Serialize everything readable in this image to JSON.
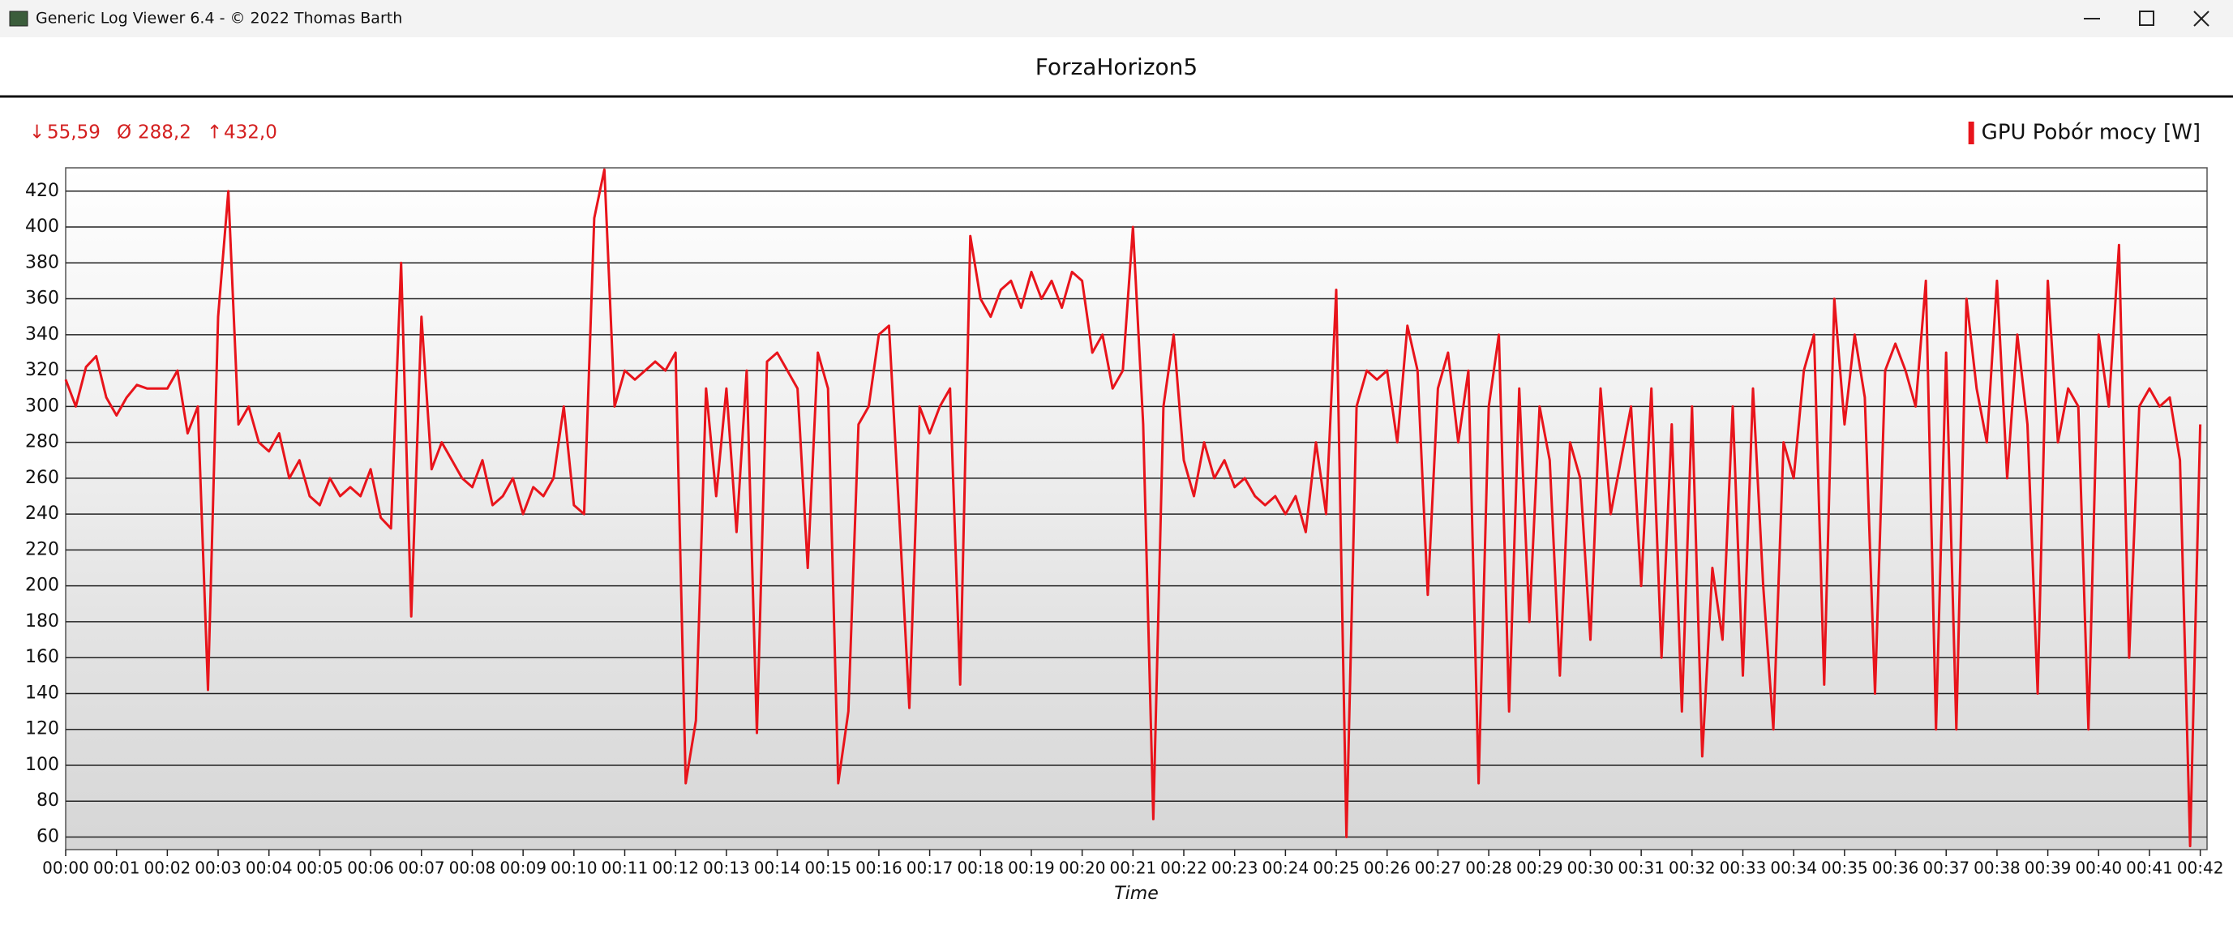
{
  "window": {
    "title": "Generic Log Viewer 6.4 - © 2022 Thomas Barth"
  },
  "chart_data": {
    "type": "line",
    "title": "ForzaHorizon5",
    "x_label": "Time",
    "stats": [
      {
        "symbol": "↓",
        "value": "55,59"
      },
      {
        "symbol": "Ø",
        "value": "288,2"
      },
      {
        "symbol": "↑",
        "value": "432,0"
      }
    ],
    "legend": "top-right",
    "grid": true,
    "xlim": [
      0,
      2528
    ],
    "ylim": [
      53,
      433
    ],
    "yticks": [
      60,
      80,
      100,
      120,
      140,
      160,
      180,
      200,
      220,
      240,
      260,
      280,
      300,
      320,
      340,
      360,
      380,
      400,
      420
    ],
    "xticks": [
      {
        "value": 0,
        "label": "00:00"
      },
      {
        "value": 60,
        "label": "00:01"
      },
      {
        "value": 120,
        "label": "00:02"
      },
      {
        "value": 180,
        "label": "00:03"
      },
      {
        "value": 240,
        "label": "00:04"
      },
      {
        "value": 300,
        "label": "00:05"
      },
      {
        "value": 360,
        "label": "00:06"
      },
      {
        "value": 420,
        "label": "00:07"
      },
      {
        "value": 480,
        "label": "00:08"
      },
      {
        "value": 540,
        "label": "00:09"
      },
      {
        "value": 600,
        "label": "00:10"
      },
      {
        "value": 660,
        "label": "00:11"
      },
      {
        "value": 720,
        "label": "00:12"
      },
      {
        "value": 780,
        "label": "00:13"
      },
      {
        "value": 840,
        "label": "00:14"
      },
      {
        "value": 900,
        "label": "00:15"
      },
      {
        "value": 960,
        "label": "00:16"
      },
      {
        "value": 1020,
        "label": "00:17"
      },
      {
        "value": 1080,
        "label": "00:18"
      },
      {
        "value": 1140,
        "label": "00:19"
      },
      {
        "value": 1200,
        "label": "00:20"
      },
      {
        "value": 1260,
        "label": "00:21"
      },
      {
        "value": 1320,
        "label": "00:22"
      },
      {
        "value": 1380,
        "label": "00:23"
      },
      {
        "value": 1440,
        "label": "00:24"
      },
      {
        "value": 1500,
        "label": "00:25"
      },
      {
        "value": 1560,
        "label": "00:26"
      },
      {
        "value": 1620,
        "label": "00:27"
      },
      {
        "value": 1680,
        "label": "00:28"
      },
      {
        "value": 1740,
        "label": "00:29"
      },
      {
        "value": 1800,
        "label": "00:30"
      },
      {
        "value": 1860,
        "label": "00:31"
      },
      {
        "value": 1920,
        "label": "00:32"
      },
      {
        "value": 1980,
        "label": "00:33"
      },
      {
        "value": 2040,
        "label": "00:34"
      },
      {
        "value": 2100,
        "label": "00:35"
      },
      {
        "value": 2160,
        "label": "00:36"
      },
      {
        "value": 2220,
        "label": "00:37"
      },
      {
        "value": 2280,
        "label": "00:38"
      },
      {
        "value": 2340,
        "label": "00:39"
      },
      {
        "value": 2400,
        "label": "00:40"
      },
      {
        "value": 2460,
        "label": "00:41"
      },
      {
        "value": 2520,
        "label": "00:42"
      }
    ],
    "x": [
      0,
      12,
      24,
      36,
      48,
      60,
      72,
      84,
      96,
      108,
      120,
      132,
      144,
      156,
      168,
      180,
      192,
      204,
      216,
      228,
      240,
      252,
      264,
      276,
      288,
      300,
      312,
      324,
      336,
      348,
      360,
      372,
      384,
      396,
      408,
      420,
      432,
      444,
      456,
      468,
      480,
      492,
      504,
      516,
      528,
      540,
      552,
      564,
      576,
      588,
      600,
      612,
      624,
      636,
      648,
      660,
      672,
      684,
      696,
      708,
      720,
      732,
      744,
      756,
      768,
      780,
      792,
      804,
      816,
      828,
      840,
      852,
      864,
      876,
      888,
      900,
      912,
      924,
      936,
      948,
      960,
      972,
      984,
      996,
      1008,
      1020,
      1032,
      1044,
      1056,
      1068,
      1080,
      1092,
      1104,
      1116,
      1128,
      1140,
      1152,
      1164,
      1176,
      1188,
      1200,
      1212,
      1224,
      1236,
      1248,
      1260,
      1272,
      1284,
      1296,
      1308,
      1320,
      1332,
      1344,
      1356,
      1368,
      1380,
      1392,
      1404,
      1416,
      1428,
      1440,
      1452,
      1464,
      1476,
      1488,
      1500,
      1512,
      1524,
      1536,
      1548,
      1560,
      1572,
      1584,
      1596,
      1608,
      1620,
      1632,
      1644,
      1656,
      1668,
      1680,
      1692,
      1704,
      1716,
      1728,
      1740,
      1752,
      1764,
      1776,
      1788,
      1800,
      1812,
      1824,
      1836,
      1848,
      1860,
      1872,
      1884,
      1896,
      1908,
      1920,
      1932,
      1944,
      1956,
      1968,
      1980,
      1992,
      2004,
      2016,
      2028,
      2040,
      2052,
      2064,
      2076,
      2088,
      2100,
      2112,
      2124,
      2136,
      2148,
      2160,
      2172,
      2184,
      2196,
      2208,
      2220,
      2232,
      2244,
      2256,
      2268,
      2280,
      2292,
      2304,
      2316,
      2328,
      2340,
      2352,
      2364,
      2376,
      2388,
      2400,
      2412,
      2424,
      2436,
      2448,
      2460,
      2472,
      2484,
      2496,
      2508,
      2520
    ],
    "series": [
      {
        "name": "GPU Pobór mocy [W]",
        "color": "#e8141b",
        "values": [
          315,
          300,
          322,
          328,
          305,
          295,
          305,
          312,
          310,
          310,
          310,
          320,
          285,
          300,
          142,
          350,
          420,
          290,
          300,
          280,
          275,
          285,
          260,
          270,
          250,
          245,
          260,
          250,
          255,
          250,
          265,
          238,
          232,
          380,
          183,
          350,
          265,
          280,
          270,
          260,
          255,
          270,
          245,
          250,
          260,
          240,
          255,
          250,
          260,
          300,
          245,
          240,
          405,
          432,
          300,
          320,
          315,
          320,
          325,
          320,
          330,
          90,
          125,
          310,
          250,
          310,
          230,
          320,
          118,
          325,
          330,
          320,
          310,
          210,
          330,
          310,
          90,
          130,
          290,
          300,
          340,
          345,
          240,
          132,
          300,
          285,
          300,
          310,
          145,
          395,
          360,
          350,
          365,
          370,
          355,
          375,
          360,
          370,
          355,
          375,
          370,
          330,
          340,
          310,
          320,
          400,
          290,
          70,
          300,
          340,
          270,
          250,
          280,
          260,
          270,
          255,
          260,
          250,
          245,
          250,
          240,
          250,
          230,
          280,
          240,
          365,
          60,
          300,
          320,
          315,
          320,
          280,
          345,
          320,
          195,
          310,
          330,
          280,
          320,
          90,
          300,
          340,
          130,
          310,
          180,
          300,
          270,
          150,
          280,
          260,
          170,
          310,
          240,
          270,
          300,
          200,
          310,
          160,
          290,
          130,
          300,
          105,
          210,
          170,
          300,
          150,
          310,
          200,
          120,
          280,
          260,
          320,
          340,
          145,
          360,
          290,
          340,
          305,
          140,
          320,
          335,
          320,
          300,
          370,
          120,
          330,
          120,
          360,
          310,
          280,
          370,
          260,
          340,
          290,
          140,
          370,
          280,
          310,
          300,
          120,
          340,
          300,
          390,
          160,
          300,
          310,
          300,
          305,
          270,
          55,
          290
        ]
      }
    ]
  }
}
